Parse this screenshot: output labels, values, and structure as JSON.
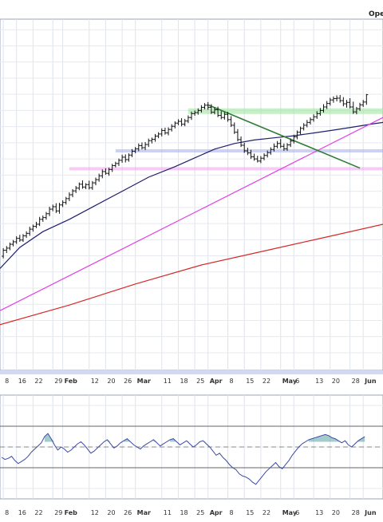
{
  "header": {
    "corner_label": "Ope"
  },
  "chart_data": [
    {
      "type": "line",
      "panel": "price",
      "title": "",
      "xlabel": "",
      "ylabel": "",
      "grid": true,
      "x_range": [
        -1,
        115
      ],
      "ylim": [
        0,
        100
      ],
      "time_labels": [
        {
          "t": 0,
          "label": "8"
        },
        {
          "t": 4,
          "label": "16"
        },
        {
          "t": 9,
          "label": "22"
        },
        {
          "t": 15,
          "label": "29"
        },
        {
          "t": 18,
          "label": "Feb"
        },
        {
          "t": 26,
          "label": "12"
        },
        {
          "t": 31,
          "label": "20"
        },
        {
          "t": 36,
          "label": "26"
        },
        {
          "t": 40,
          "label": "Mar"
        },
        {
          "t": 48,
          "label": "11"
        },
        {
          "t": 53,
          "label": "18"
        },
        {
          "t": 58,
          "label": "25"
        },
        {
          "t": 62,
          "label": "Apr"
        },
        {
          "t": 68,
          "label": "8"
        },
        {
          "t": 73,
          "label": "15"
        },
        {
          "t": 78,
          "label": "22"
        },
        {
          "t": 84,
          "label": "May"
        },
        {
          "t": 88,
          "label": "6"
        },
        {
          "t": 94,
          "label": "13"
        },
        {
          "t": 99,
          "label": "20"
        },
        {
          "t": 105,
          "label": "28"
        },
        {
          "t": 109,
          "label": "Jun"
        }
      ],
      "ohlc": [
        [
          0,
          32.5,
          34.8,
          31.9,
          34.2
        ],
        [
          1,
          34.2,
          35.4,
          33.4,
          34.8
        ],
        [
          2,
          34.8,
          36.4,
          34.2,
          35.9
        ],
        [
          3,
          35.9,
          37.1,
          35.3,
          36.6
        ],
        [
          4,
          36.6,
          38.2,
          36.0,
          37.6
        ],
        [
          5,
          37.6,
          38.6,
          36.6,
          37.1
        ],
        [
          6,
          37.1,
          38.8,
          36.6,
          38.3
        ],
        [
          7,
          38.3,
          39.6,
          37.7,
          39.0
        ],
        [
          8,
          39.0,
          40.9,
          38.3,
          40.2
        ],
        [
          9,
          40.2,
          41.5,
          39.5,
          41.0
        ],
        [
          10,
          41.0,
          42.3,
          40.5,
          41.6
        ],
        [
          11,
          41.6,
          43.7,
          41.1,
          43.0
        ],
        [
          12,
          43.0,
          44.1,
          42.3,
          43.5
        ],
        [
          13,
          43.5,
          45.1,
          42.9,
          44.6
        ],
        [
          14,
          44.6,
          46.6,
          43.9,
          45.9
        ],
        [
          15,
          45.9,
          47.2,
          45.3,
          46.6
        ],
        [
          16,
          46.6,
          47.6,
          44.8,
          45.4
        ],
        [
          17,
          45.4,
          47.7,
          44.6,
          47.1
        ],
        [
          18,
          47.1,
          48.4,
          46.5,
          47.8
        ],
        [
          19,
          47.8,
          49.4,
          47.2,
          48.9
        ],
        [
          20,
          48.9,
          50.7,
          48.2,
          50.0
        ],
        [
          21,
          50.0,
          51.6,
          49.3,
          51.1
        ],
        [
          22,
          51.1,
          52.5,
          50.5,
          51.9
        ],
        [
          23,
          51.9,
          53.5,
          51.3,
          53.0
        ],
        [
          24,
          53.0,
          54.1,
          51.7,
          52.2
        ],
        [
          25,
          52.2,
          53.3,
          51.6,
          52.9
        ],
        [
          26,
          52.9,
          54.0,
          51.5,
          52.0
        ],
        [
          27,
          52.0,
          53.9,
          51.4,
          53.4
        ],
        [
          28,
          53.4,
          54.9,
          52.7,
          54.3
        ],
        [
          29,
          54.3,
          56.0,
          53.7,
          55.4
        ],
        [
          30,
          55.4,
          57.2,
          54.7,
          56.6
        ],
        [
          31,
          56.6,
          57.5,
          55.7,
          56.1
        ],
        [
          32,
          56.1,
          57.7,
          55.4,
          57.2
        ],
        [
          33,
          57.2,
          58.8,
          56.5,
          58.3
        ],
        [
          34,
          58.3,
          59.4,
          57.8,
          58.9
        ],
        [
          35,
          58.9,
          60.3,
          58.2,
          59.8
        ],
        [
          36,
          59.8,
          61.4,
          59.1,
          60.7
        ],
        [
          37,
          60.7,
          61.5,
          59.2,
          60.0
        ],
        [
          38,
          60.0,
          61.8,
          59.4,
          61.3
        ],
        [
          39,
          61.3,
          63.0,
          60.7,
          62.4
        ],
        [
          40,
          62.4,
          63.6,
          61.8,
          63.1
        ],
        [
          41,
          63.1,
          64.6,
          62.4,
          64.0
        ],
        [
          42,
          64.0,
          64.9,
          62.9,
          63.4
        ],
        [
          43,
          63.4,
          65.0,
          62.7,
          64.3
        ],
        [
          44,
          64.3,
          66.0,
          63.6,
          65.4
        ],
        [
          45,
          65.4,
          66.3,
          64.6,
          65.8
        ],
        [
          46,
          65.8,
          67.3,
          65.1,
          66.7
        ],
        [
          47,
          66.7,
          67.8,
          66.1,
          67.3
        ],
        [
          48,
          67.3,
          68.9,
          66.6,
          68.3
        ],
        [
          49,
          68.3,
          69.1,
          67.1,
          67.6
        ],
        [
          50,
          67.6,
          69.2,
          66.9,
          68.6
        ],
        [
          51,
          68.6,
          70.1,
          68.0,
          69.5
        ],
        [
          52,
          69.5,
          70.9,
          68.9,
          70.4
        ],
        [
          53,
          70.4,
          71.5,
          69.8,
          70.9
        ],
        [
          54,
          70.9,
          71.8,
          69.5,
          70.1
        ],
        [
          55,
          70.1,
          71.6,
          69.5,
          71.0
        ],
        [
          56,
          71.0,
          72.6,
          70.4,
          72.0
        ],
        [
          57,
          72.0,
          73.7,
          71.3,
          73.1
        ],
        [
          58,
          73.1,
          74.0,
          72.5,
          73.4
        ],
        [
          59,
          73.4,
          74.6,
          72.8,
          74.0
        ],
        [
          60,
          74.0,
          75.5,
          73.4,
          74.9
        ],
        [
          61,
          74.9,
          76.1,
          74.3,
          75.5
        ],
        [
          62,
          75.5,
          76.4,
          74.2,
          74.9
        ],
        [
          63,
          74.9,
          75.8,
          73.0,
          73.5
        ],
        [
          64,
          73.5,
          74.9,
          72.9,
          74.2
        ],
        [
          65,
          74.2,
          75.1,
          72.1,
          72.6
        ],
        [
          66,
          72.6,
          73.8,
          71.5,
          72.0
        ],
        [
          67,
          72.0,
          73.5,
          71.4,
          72.9
        ],
        [
          68,
          72.9,
          73.6,
          70.8,
          71.4
        ],
        [
          69,
          71.4,
          72.4,
          69.3,
          69.8
        ],
        [
          70,
          69.8,
          70.6,
          67.3,
          67.8
        ],
        [
          71,
          67.8,
          68.7,
          65.2,
          65.7
        ],
        [
          72,
          65.7,
          66.6,
          63.6,
          64.1
        ],
        [
          73,
          64.1,
          64.8,
          61.9,
          62.5
        ],
        [
          74,
          62.5,
          63.4,
          61.3,
          61.9
        ],
        [
          75,
          61.9,
          62.8,
          60.2,
          60.8
        ],
        [
          76,
          60.8,
          61.7,
          59.7,
          60.2
        ],
        [
          77,
          60.2,
          61.1,
          59.2,
          59.6
        ],
        [
          78,
          59.6,
          61.0,
          59.0,
          60.4
        ],
        [
          79,
          60.4,
          61.8,
          59.8,
          61.2
        ],
        [
          80,
          61.2,
          62.6,
          60.6,
          62.0
        ],
        [
          81,
          62.0,
          63.5,
          61.4,
          62.9
        ],
        [
          82,
          62.9,
          64.6,
          62.3,
          63.8
        ],
        [
          83,
          63.8,
          65.3,
          63.2,
          64.6
        ],
        [
          84,
          64.6,
          65.9,
          63.3,
          63.8
        ],
        [
          85,
          63.8,
          64.6,
          62.5,
          63.1
        ],
        [
          86,
          63.1,
          64.7,
          62.5,
          64.2
        ],
        [
          87,
          64.2,
          66.0,
          63.6,
          65.3
        ],
        [
          88,
          65.3,
          67.1,
          64.6,
          66.5
        ],
        [
          89,
          66.5,
          68.3,
          65.8,
          67.8
        ],
        [
          90,
          67.8,
          69.4,
          67.2,
          68.9
        ],
        [
          91,
          68.9,
          70.4,
          68.3,
          69.8
        ],
        [
          92,
          69.8,
          71.3,
          69.2,
          70.6
        ],
        [
          93,
          70.6,
          72.0,
          70.0,
          71.4
        ],
        [
          94,
          71.4,
          72.9,
          70.8,
          72.2
        ],
        [
          95,
          72.2,
          73.8,
          71.6,
          73.1
        ],
        [
          96,
          73.1,
          74.7,
          72.5,
          74.0
        ],
        [
          97,
          74.0,
          75.8,
          73.4,
          75.0
        ],
        [
          98,
          75.0,
          76.7,
          74.4,
          76.0
        ],
        [
          99,
          76.0,
          77.6,
          75.4,
          77.0
        ],
        [
          100,
          77.0,
          78.0,
          76.2,
          77.4
        ],
        [
          101,
          77.4,
          78.3,
          76.6,
          77.5
        ],
        [
          102,
          77.5,
          78.4,
          76.2,
          76.8
        ],
        [
          103,
          76.8,
          77.8,
          75.2,
          75.9
        ],
        [
          104,
          75.9,
          77.0,
          74.8,
          76.3
        ],
        [
          105,
          76.3,
          77.5,
          74.6,
          75.0
        ],
        [
          106,
          75.0,
          76.5,
          73.0,
          73.6
        ],
        [
          107,
          73.6,
          75.0,
          72.9,
          74.5
        ],
        [
          108,
          74.5,
          76.2,
          73.9,
          75.6
        ],
        [
          109,
          75.6,
          77.0,
          75.0,
          76.4
        ],
        [
          110,
          76.4,
          78.7,
          75.6,
          78.5
        ]
      ],
      "series": [
        {
          "color": "#1f1f6e",
          "points": [
            [
              -1,
              29.0
            ],
            [
              5,
              35.0
            ],
            [
              12,
              39.5
            ],
            [
              20,
              43.0
            ],
            [
              28,
              47.0
            ],
            [
              36,
              51.0
            ],
            [
              44,
              55.0
            ],
            [
              52,
              58.0
            ],
            [
              58,
              60.5
            ],
            [
              64,
              63.0
            ],
            [
              70,
              64.6
            ],
            [
              76,
              65.6
            ],
            [
              82,
              66.2
            ],
            [
              88,
              66.8
            ],
            [
              94,
              67.6
            ],
            [
              100,
              68.4
            ],
            [
              106,
              69.3
            ],
            [
              112,
              70.2
            ],
            [
              115,
              70.6
            ]
          ]
        },
        {
          "color": "#d62a2a",
          "points": [
            [
              -1,
              13.0
            ],
            [
              20,
              18.6
            ],
            [
              40,
              24.6
            ],
            [
              60,
              30.0
            ],
            [
              80,
              34.2
            ],
            [
              100,
              38.4
            ],
            [
              115,
              41.6
            ]
          ]
        }
      ],
      "trendlines": [
        {
          "color": "#e23fe2",
          "points": [
            [
              -1,
              17.0
            ],
            [
              115,
              72.0
            ]
          ]
        },
        {
          "color": "#2e7d32",
          "points": [
            [
              62,
              75.6
            ],
            [
              108,
              57.6
            ]
          ]
        }
      ],
      "levels": [
        {
          "color": "#9be49b",
          "y1": 73.0,
          "y2": 74.6,
          "t_start": 56,
          "t_end": 115
        },
        {
          "color": "#aab3ee",
          "y": 62.5,
          "t_start": 34,
          "t_end": 115
        },
        {
          "color": "#f0a8f0",
          "y": 57.4,
          "t_start": 20,
          "t_end": 115
        }
      ]
    },
    {
      "type": "line",
      "panel": "oscillator",
      "title": "",
      "xlabel": "",
      "ylabel": "",
      "grid": true,
      "x_range": [
        -1,
        115
      ],
      "ylim": [
        0,
        100
      ],
      "reference_lines": [
        70,
        30
      ],
      "values": [
        40,
        38,
        39,
        41,
        37,
        34,
        36,
        38,
        41,
        45,
        48,
        51,
        54,
        60,
        63,
        58,
        52,
        47,
        50,
        48,
        45,
        47,
        50,
        53,
        55,
        52,
        48,
        44,
        46,
        49,
        52,
        55,
        57,
        53,
        49,
        51,
        54,
        56,
        58,
        55,
        52,
        50,
        48,
        51,
        53,
        55,
        57,
        54,
        51,
        53,
        55,
        57,
        58,
        55,
        52,
        54,
        56,
        53,
        50,
        52,
        55,
        56,
        53,
        50,
        46,
        42,
        44,
        40,
        37,
        33,
        30,
        28,
        24,
        22,
        21,
        19,
        16,
        14,
        18,
        22,
        26,
        29,
        32,
        35,
        31,
        29,
        33,
        37,
        42,
        46,
        50,
        53,
        55,
        57,
        58,
        59,
        60,
        61,
        62,
        61,
        59,
        58,
        56,
        54,
        56,
        52,
        50,
        53,
        56,
        58,
        60
      ]
    }
  ]
}
